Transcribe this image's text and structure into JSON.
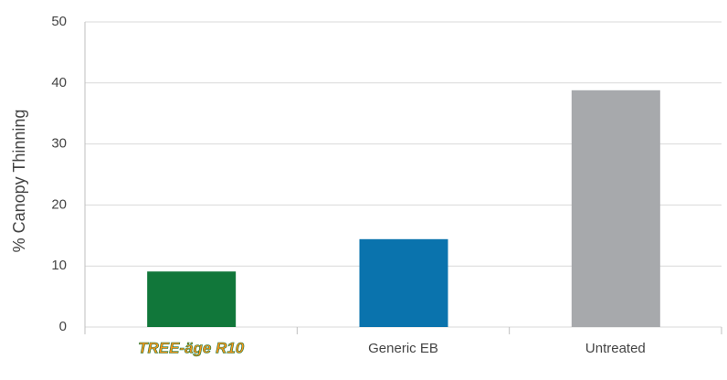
{
  "chart_data": {
    "type": "bar",
    "y_label": "% Canopy Thinning",
    "categories": [
      "TREE-äge R10",
      "Generic EB",
      "Untreated"
    ],
    "values": [
      9.1,
      14.4,
      38.8
    ],
    "colors": [
      "#11773a",
      "#0a73ad",
      "#a7a9ac"
    ],
    "ylim": [
      0,
      50
    ],
    "yticks": [
      0,
      10,
      20,
      30,
      40,
      50
    ],
    "grid": true
  }
}
